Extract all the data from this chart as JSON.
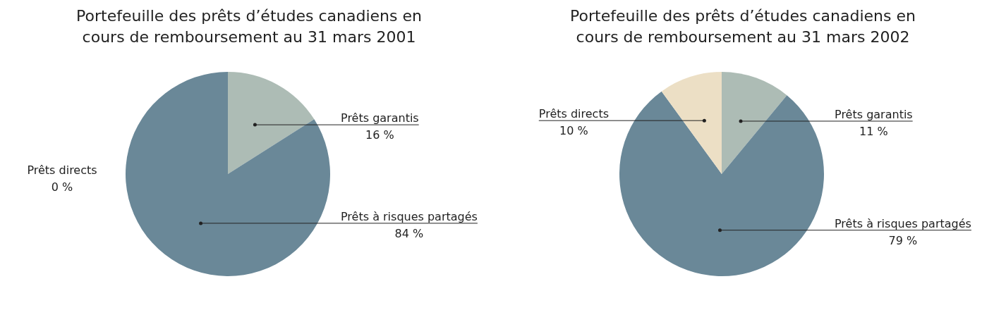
{
  "chart_data": [
    {
      "type": "pie",
      "title": "Portefeuille des prêts d’études canadiens en cours de remboursement au 31 mars 2001",
      "categories": [
        "Prêts garantis",
        "Prêts à risques partagés",
        "Prêts directs"
      ],
      "values": [
        16,
        84,
        0
      ],
      "value_labels": [
        "16 %",
        "84 %",
        "0 %"
      ],
      "colors": [
        "#adbcb5",
        "#6a8898",
        "#ecdfc5"
      ],
      "legend": false
    },
    {
      "type": "pie",
      "title": "Portefeuille des prêts d’études canadiens en cours de remboursement au 31 mars 2002",
      "categories": [
        "Prêts garantis",
        "Prêts à risques partagés",
        "Prêts directs"
      ],
      "values": [
        11,
        79,
        10
      ],
      "value_labels": [
        "11 %",
        "79 %",
        "10 %"
      ],
      "colors": [
        "#adbcb5",
        "#6a8898",
        "#ecdfc5"
      ],
      "legend": false
    }
  ]
}
